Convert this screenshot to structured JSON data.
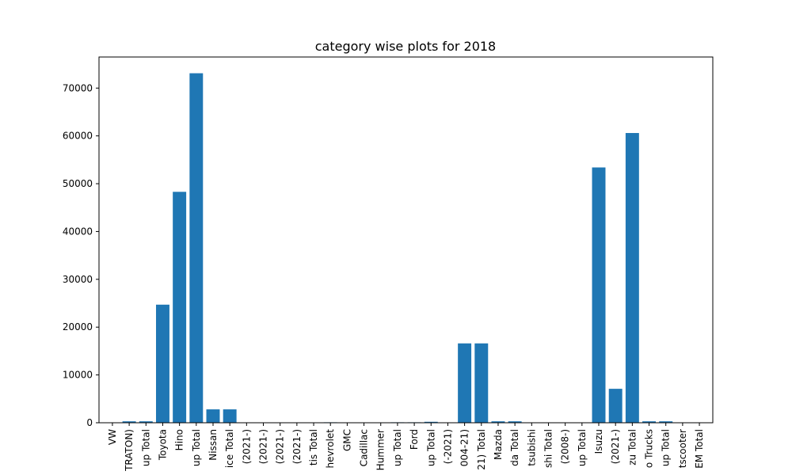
{
  "chart_data": {
    "type": "bar",
    "title": "category wise plots for 2018",
    "xlabel": "",
    "ylabel": "",
    "ylim": [
      0,
      76500
    ],
    "yticks": [
      0,
      10000,
      20000,
      30000,
      40000,
      50000,
      60000,
      70000
    ],
    "grid": false,
    "bar_color": "#1f77b4",
    "categories": [
      "VW",
      "TRATON)",
      "up Total",
      "Toyota",
      "Hino",
      "up Total",
      "Nissan",
      "ice Total",
      "(2021-)",
      "(2021-)",
      "(2021-)",
      "(2021-)",
      "tis Total",
      "hevrolet",
      "GMC",
      "Cadillac",
      "Hummer",
      "up Total",
      "Ford",
      "up Total",
      "(-2021)",
      "004-21)",
      "21) Total",
      "Mazda",
      "da Total",
      "tsubishi",
      "shi Total",
      "(2008-)",
      "up Total",
      "Isuzu",
      "(2021-)",
      "zu Total",
      "o Trucks",
      "up Total",
      "tscooter",
      "EM Total"
    ],
    "values": [
      0,
      300,
      300,
      24700,
      48300,
      73100,
      2800,
      2800,
      0,
      0,
      0,
      0,
      0,
      100,
      0,
      0,
      0,
      100,
      100,
      200,
      0,
      16600,
      16600,
      300,
      300,
      0,
      0,
      0,
      0,
      53400,
      7100,
      60600,
      300,
      300,
      0,
      0
    ]
  }
}
